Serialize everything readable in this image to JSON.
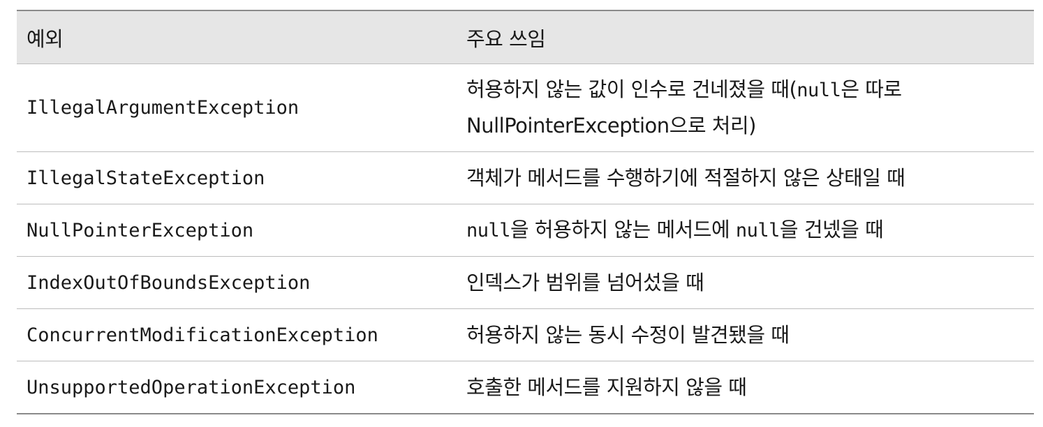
{
  "table": {
    "header": {
      "col1": "예외",
      "col2": "주요 쓰임"
    },
    "rows": [
      {
        "exception": "IllegalArgumentException",
        "usage_line1": "허용하지 않는 값이 인수로 건네졌을 때(",
        "usage_line1_code": "null",
        "usage_line1_tail": "은 따로",
        "usage_line2_code": "NullPointerException",
        "usage_line2_tail": "으로 처리)"
      },
      {
        "exception": "IllegalStateException",
        "usage": "객체가 메서드를 수행하기에 적절하지 않은 상태일 때"
      },
      {
        "exception": "NullPointerException",
        "usage_code1": "null",
        "usage_mid": "을 허용하지 않는 메서드에 ",
        "usage_code2": "null",
        "usage_tail": "을 건넸을 때"
      },
      {
        "exception": "IndexOutOfBoundsException",
        "usage": "인덱스가 범위를 넘어섰을 때"
      },
      {
        "exception": "ConcurrentModificationException",
        "usage": "허용하지 않는 동시 수정이 발견됐을 때"
      },
      {
        "exception": "UnsupportedOperationException",
        "usage": "호출한 메서드를 지원하지 않을 때"
      }
    ]
  }
}
